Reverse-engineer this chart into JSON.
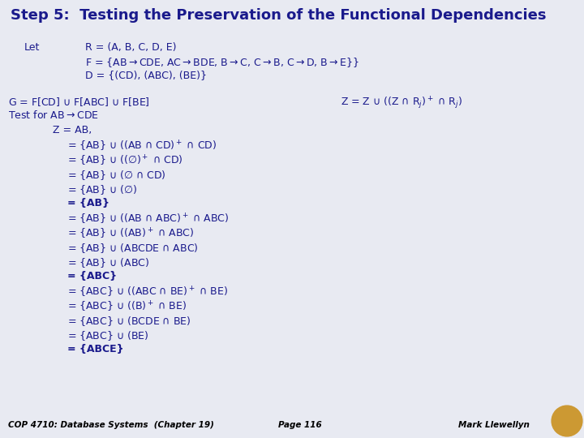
{
  "title": "Step 5:  Testing the Preservation of the Functional Dependencies",
  "title_color": "#1a1a8c",
  "bg_color": "#e8eaf2",
  "footer_bg": "#9aa4b8",
  "footer_text1": "COP 4710: Database Systems  (Chapter 19)",
  "footer_text2": "Page 116",
  "footer_text3": "Mark Llewellyn",
  "text_color": "#1a1a8c",
  "body_fontsize": 9.0
}
